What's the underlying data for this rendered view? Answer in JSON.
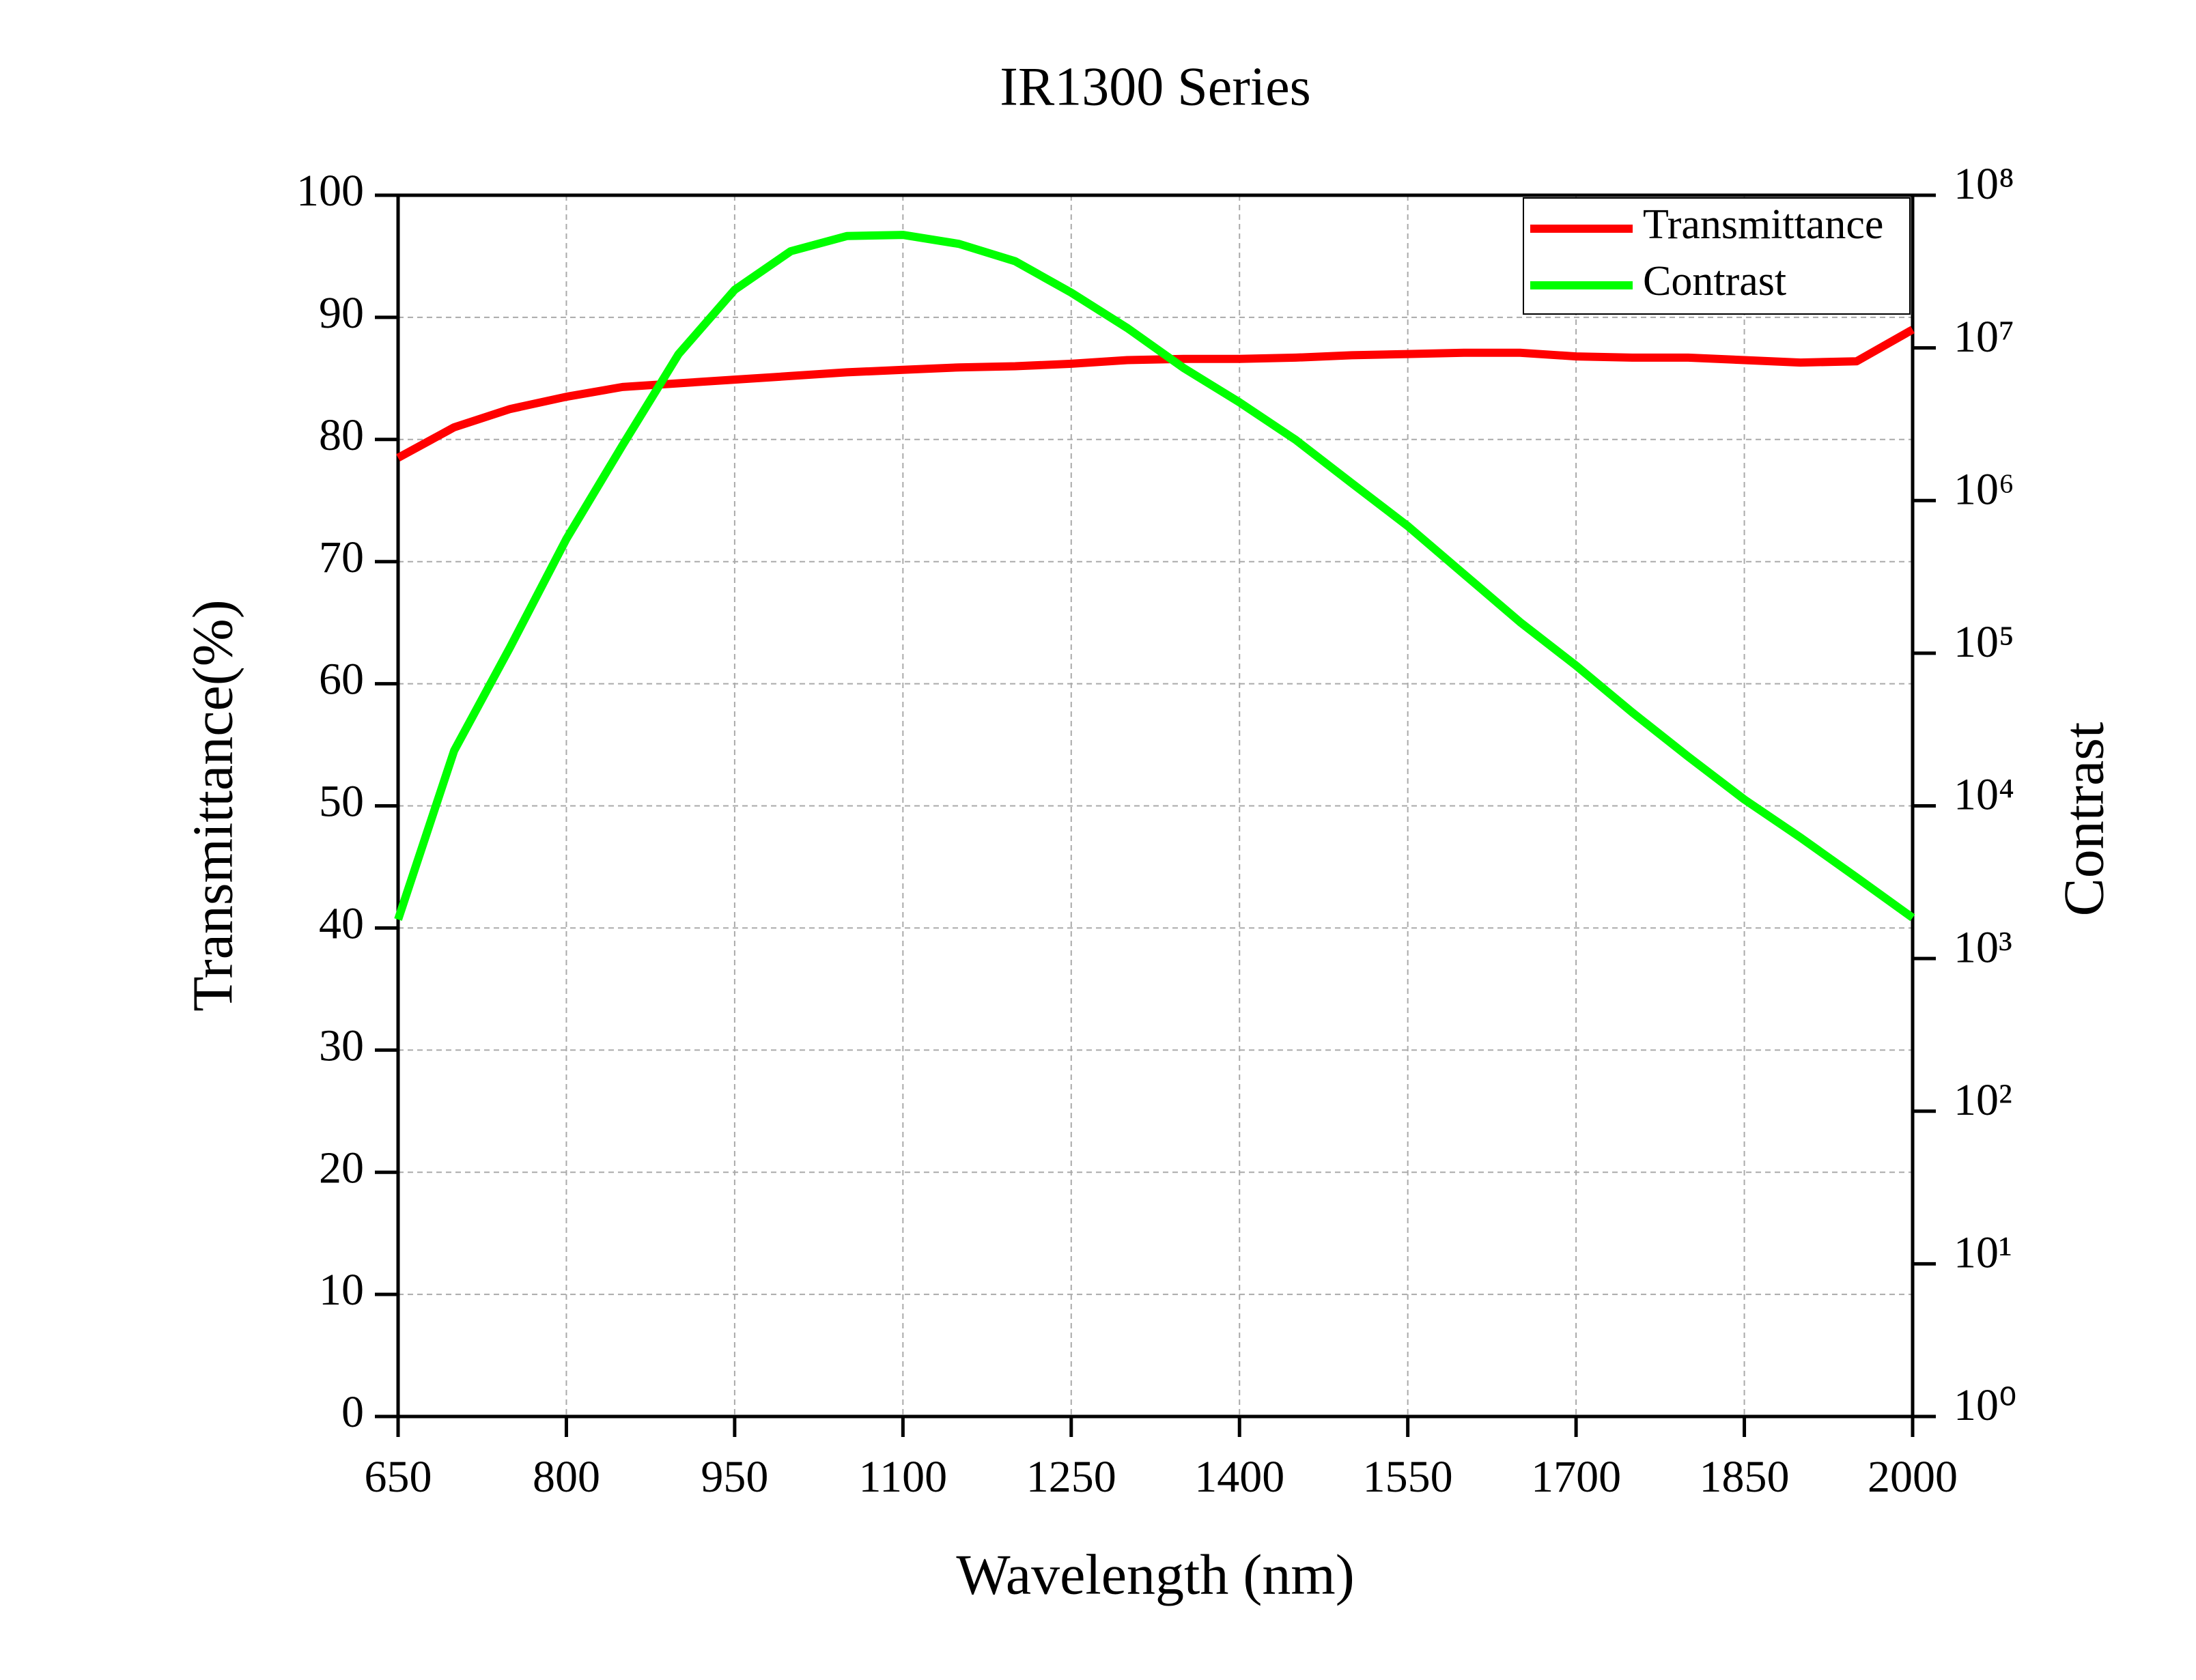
{
  "chart_data": {
    "type": "line",
    "title": "IR1300 Series",
    "x_label": "Wavelength (nm)",
    "y_label": "Transmittance(%)",
    "y2_label": "Contrast",
    "x": [
      650,
      700,
      750,
      800,
      850,
      900,
      950,
      1000,
      1050,
      1100,
      1150,
      1200,
      1250,
      1300,
      1350,
      1400,
      1450,
      1500,
      1550,
      1600,
      1650,
      1700,
      1750,
      1800,
      1850,
      1900,
      1950,
      2000
    ],
    "series": [
      {
        "name": "Transmittance",
        "color": "#ff0000",
        "axis": "y",
        "values": [
          78.5,
          81,
          82.5,
          83.5,
          84.3,
          84.6,
          84.9,
          85.2,
          85.5,
          85.7,
          85.9,
          86.0,
          86.2,
          86.5,
          86.6,
          86.6,
          86.7,
          86.9,
          87.0,
          87.1,
          87.1,
          86.8,
          86.7,
          86.7,
          86.5,
          86.3,
          86.4,
          89
        ]
      },
      {
        "name": "Contrast",
        "color": "#00ff00",
        "axis": "y2",
        "values": [
          1800,
          23000,
          110000,
          560000,
          2300000,
          9100000,
          24000000,
          43000000,
          54000000,
          55000000,
          48000000,
          37000000,
          23000000,
          13500000,
          7400000,
          4400000,
          2500000,
          1300000,
          680000,
          330000,
          160000,
          83000,
          41000,
          21000,
          11000,
          6200,
          3400,
          1850
        ]
      }
    ],
    "xlim": [
      650,
      2000
    ],
    "xticks": [
      650,
      800,
      950,
      1100,
      1250,
      1400,
      1550,
      1700,
      1850,
      2000
    ],
    "ylim": [
      0,
      100
    ],
    "yticks": [
      0,
      10,
      20,
      30,
      40,
      50,
      60,
      70,
      80,
      90,
      100
    ],
    "y2lim": [
      1,
      100000000
    ],
    "y2_log": true,
    "y2ticks": [
      {
        "value": 1,
        "label": "10⁰"
      },
      {
        "value": 10,
        "label": "10¹"
      },
      {
        "value": 100,
        "label": "10²"
      },
      {
        "value": 1000,
        "label": "10³"
      },
      {
        "value": 10000,
        "label": "10⁴"
      },
      {
        "value": 100000,
        "label": "10⁵"
      },
      {
        "value": 1000000,
        "label": "10⁶"
      },
      {
        "value": 10000000,
        "label": "10⁷"
      },
      {
        "value": 100000000,
        "label": "10⁸"
      }
    ],
    "grid": true,
    "legend": "upper right"
  }
}
